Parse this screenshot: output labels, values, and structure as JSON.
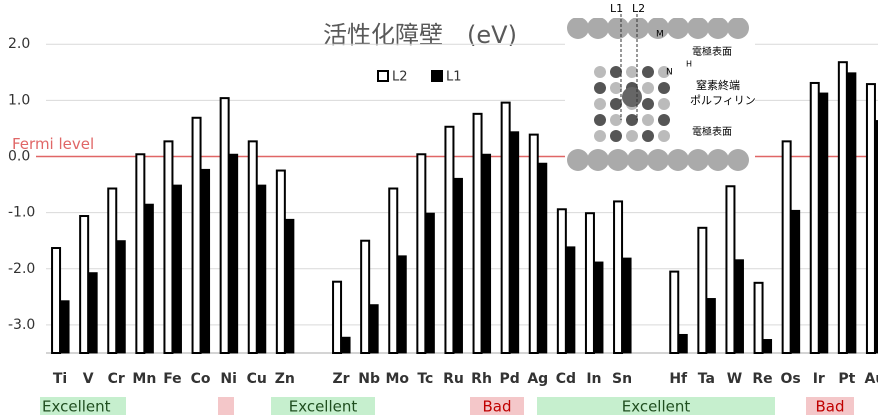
{
  "chart_data": {
    "type": "bar",
    "title": "活性化障壁　(eV)",
    "categories": [
      "Ti",
      "V",
      "Cr",
      "Mn",
      "Fe",
      "Co",
      "Ni",
      "Cu",
      "Zn",
      null,
      "Zr",
      "Nb",
      "Mo",
      "Tc",
      "Ru",
      "Rh",
      "Pd",
      "Ag",
      "Cd",
      "In",
      "Sn",
      null,
      "Hf",
      "Ta",
      "W",
      "Re",
      "Os",
      "Ir",
      "Pt",
      "Au"
    ],
    "series": [
      {
        "name": "L2",
        "color": "#ffffff",
        "values": [
          -1.63,
          -1.06,
          -0.57,
          0.04,
          0.27,
          0.69,
          1.04,
          0.27,
          -0.25,
          null,
          -2.23,
          -1.5,
          -0.57,
          0.04,
          0.53,
          0.76,
          0.96,
          0.39,
          -0.94,
          -1.01,
          -0.8,
          null,
          -2.05,
          -1.27,
          -0.53,
          -2.25,
          0.27,
          1.31,
          1.68,
          1.29
        ]
      },
      {
        "name": "L1",
        "color": "#000000",
        "values": [
          -2.57,
          -2.07,
          -1.5,
          -0.85,
          -0.51,
          -0.23,
          0.04,
          -0.51,
          -1.12,
          null,
          -3.22,
          -2.64,
          -1.77,
          -1.01,
          -0.39,
          0.04,
          0.44,
          -0.12,
          -1.61,
          -1.88,
          -1.81,
          null,
          -3.17,
          -2.53,
          -1.84,
          -3.26,
          -0.96,
          1.13,
          1.49,
          0.64
        ]
      }
    ],
    "ylim": [
      -3.5,
      2.2
    ],
    "yticks": [
      {
        "value": 2,
        "label": "2.0"
      },
      {
        "value": 1,
        "label": "1.0"
      },
      {
        "value": 0,
        "label": "0.0"
      },
      {
        "value": -1,
        "label": "-1.0"
      },
      {
        "value": -2,
        "label": "-2.0"
      },
      {
        "value": -3,
        "label": "-3.0"
      }
    ],
    "grid": true,
    "reference_line": {
      "value": 0,
      "label": "Fermi level",
      "color": "#e06666"
    },
    "annotations": [
      {
        "label": "Excellent",
        "color": "#c6efce"
      },
      {
        "label": "Excellent",
        "color": "#c6efce"
      },
      {
        "label": "Bad",
        "color": "#f4c7c9"
      },
      {
        "label": "Excellent",
        "color": "#c6efce"
      },
      {
        "label": "Bad",
        "color": "#f4c7c9"
      }
    ]
  },
  "inset": {
    "l1": "L1",
    "l2": "L2",
    "m": "M",
    "n": "N",
    "h": "H",
    "top": "電極表面",
    "middle": "窒素終端\nポルフィリン",
    "bottom": "電極表面"
  }
}
